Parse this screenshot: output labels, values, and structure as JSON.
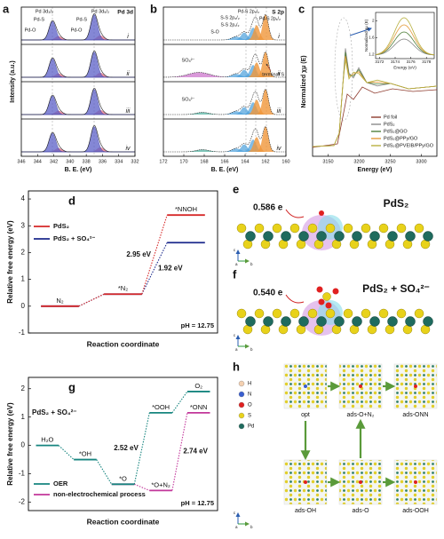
{
  "panels": {
    "a": {
      "letter": "a",
      "tag": "Pd 3d",
      "xlabel": "B. E. (eV)",
      "ylabel": "Intensity (a.u.)",
      "xlim": [
        346,
        332
      ],
      "xticks": [
        346,
        344,
        342,
        340,
        338,
        336,
        334,
        332
      ],
      "rows": [
        "i",
        "ii",
        "iii",
        "iv"
      ],
      "peak_labels": [
        "Pd-O",
        "Pd 3d₃/₂",
        "Pd-S",
        "Pd-O",
        "Pd-S",
        "Pd 3d₅/₂"
      ]
    },
    "b": {
      "letter": "b",
      "tag": "S 2p",
      "xlabel": "B. E. (eV)",
      "xlim": [
        172,
        160
      ],
      "xticks": [
        172,
        170,
        168,
        166,
        164,
        162,
        160
      ],
      "rows": [
        "i",
        "ii",
        "iii",
        "iv"
      ],
      "peak_labels": [
        "Pd-S 2p₃/₂",
        "Pd-S 2p₁/₂",
        "S-S 2p₃/₂",
        "S-S 2p₁/₂",
        "S-O"
      ],
      "other_labels": [
        "SO₄²⁻",
        "terminal S",
        "SO₄²⁻"
      ]
    },
    "c": {
      "letter": "c",
      "xlabel": "Energy (eV)",
      "ylabel": "Normalized χμ (E)",
      "xlim": [
        3125,
        3325
      ],
      "xticks": [
        3150,
        3200,
        3250,
        3300
      ],
      "inset": {
        "xlabel": "Energy (eV)",
        "ylabel": "Normalized χμ (E)",
        "xlim": [
          3171.5,
          3179
        ],
        "xticks": [
          3172,
          3174,
          3176,
          3178
        ],
        "ylim": [
          1.1,
          2.2
        ],
        "yticks": [
          1.2,
          1.6,
          2.0
        ]
      },
      "series": [
        {
          "name": "Pd foil",
          "color": "#8e3b2e"
        },
        {
          "name": "PdS₂",
          "color": "#8a8a8a"
        },
        {
          "name": "PdS₂@GO",
          "color": "#4f7f3a"
        },
        {
          "name": "PdS₂@PPy/GO",
          "color": "#e39a3b"
        },
        {
          "name": "PdS₂@PVEIB/PPy/GO",
          "color": "#b8b040"
        }
      ]
    },
    "e": {
      "letter": "e",
      "charge": "0.586 e",
      "label": "PdS₂",
      "axes": [
        "c",
        "b",
        "a"
      ]
    },
    "f": {
      "letter": "f",
      "charge": "0.540 e",
      "label": "PdS₂ + SO₄²⁻",
      "axes": [
        "c",
        "b",
        "a"
      ]
    },
    "h": {
      "letter": "h",
      "legend": [
        "H",
        "N",
        "O",
        "S",
        "Pd"
      ],
      "states": [
        "opt",
        "ads-O+N₂",
        "ads-ONN",
        "ads-OH",
        "ads-O",
        "ads-OOH"
      ],
      "axes": [
        "c",
        "b",
        "a"
      ]
    }
  },
  "chart_data": [
    {
      "type": "energy-diagram",
      "panel": "d",
      "xlabel": "Reaction coordinate",
      "ylabel": "Relative free energy (eV)",
      "categories": [
        "N₂",
        "*N₂",
        "*NNOH"
      ],
      "series": [
        {
          "name": "PdS₂",
          "color": "#d62828",
          "values": [
            0,
            0.45,
            3.4
          ],
          "annotation": "2.95 eV"
        },
        {
          "name": "PdS₂ + SO₄²⁻",
          "color": "#1c2a8c",
          "values": [
            0,
            0.45,
            2.37
          ],
          "annotation": "1.92 eV"
        }
      ],
      "ylim": [
        -1,
        4.3
      ],
      "yticks": [
        -1,
        0,
        1,
        2,
        3,
        4
      ],
      "legend": "upper left",
      "note": "pH = 12.75"
    },
    {
      "type": "energy-diagram",
      "panel": "g",
      "subtitle": "PdS₂ + SO₄²⁻",
      "xlabel": "Reaction coordinate",
      "ylabel": "Relative free energy (eV)",
      "categories": [
        "H₂O",
        "*OH",
        "*O",
        "*OOH",
        "O₂"
      ],
      "series": [
        {
          "name": "OER",
          "color": "#16857f",
          "values": [
            0,
            -0.5,
            -1.37,
            1.15,
            1.9
          ],
          "annotation": "2.52 eV"
        },
        {
          "name": "non-electrochemical process",
          "color": "#c2369a",
          "values": [
            null,
            null,
            -1.37,
            -1.59,
            1.15
          ],
          "point_labels": [
            null,
            null,
            null,
            "*O+N₂",
            "*ONN"
          ],
          "annotation": "2.74 eV"
        }
      ],
      "ylim": [
        -2.3,
        2.4
      ],
      "yticks": [
        -2,
        -1,
        0,
        1,
        2
      ],
      "legend": "lower left",
      "note": "pH = 12.75"
    }
  ]
}
